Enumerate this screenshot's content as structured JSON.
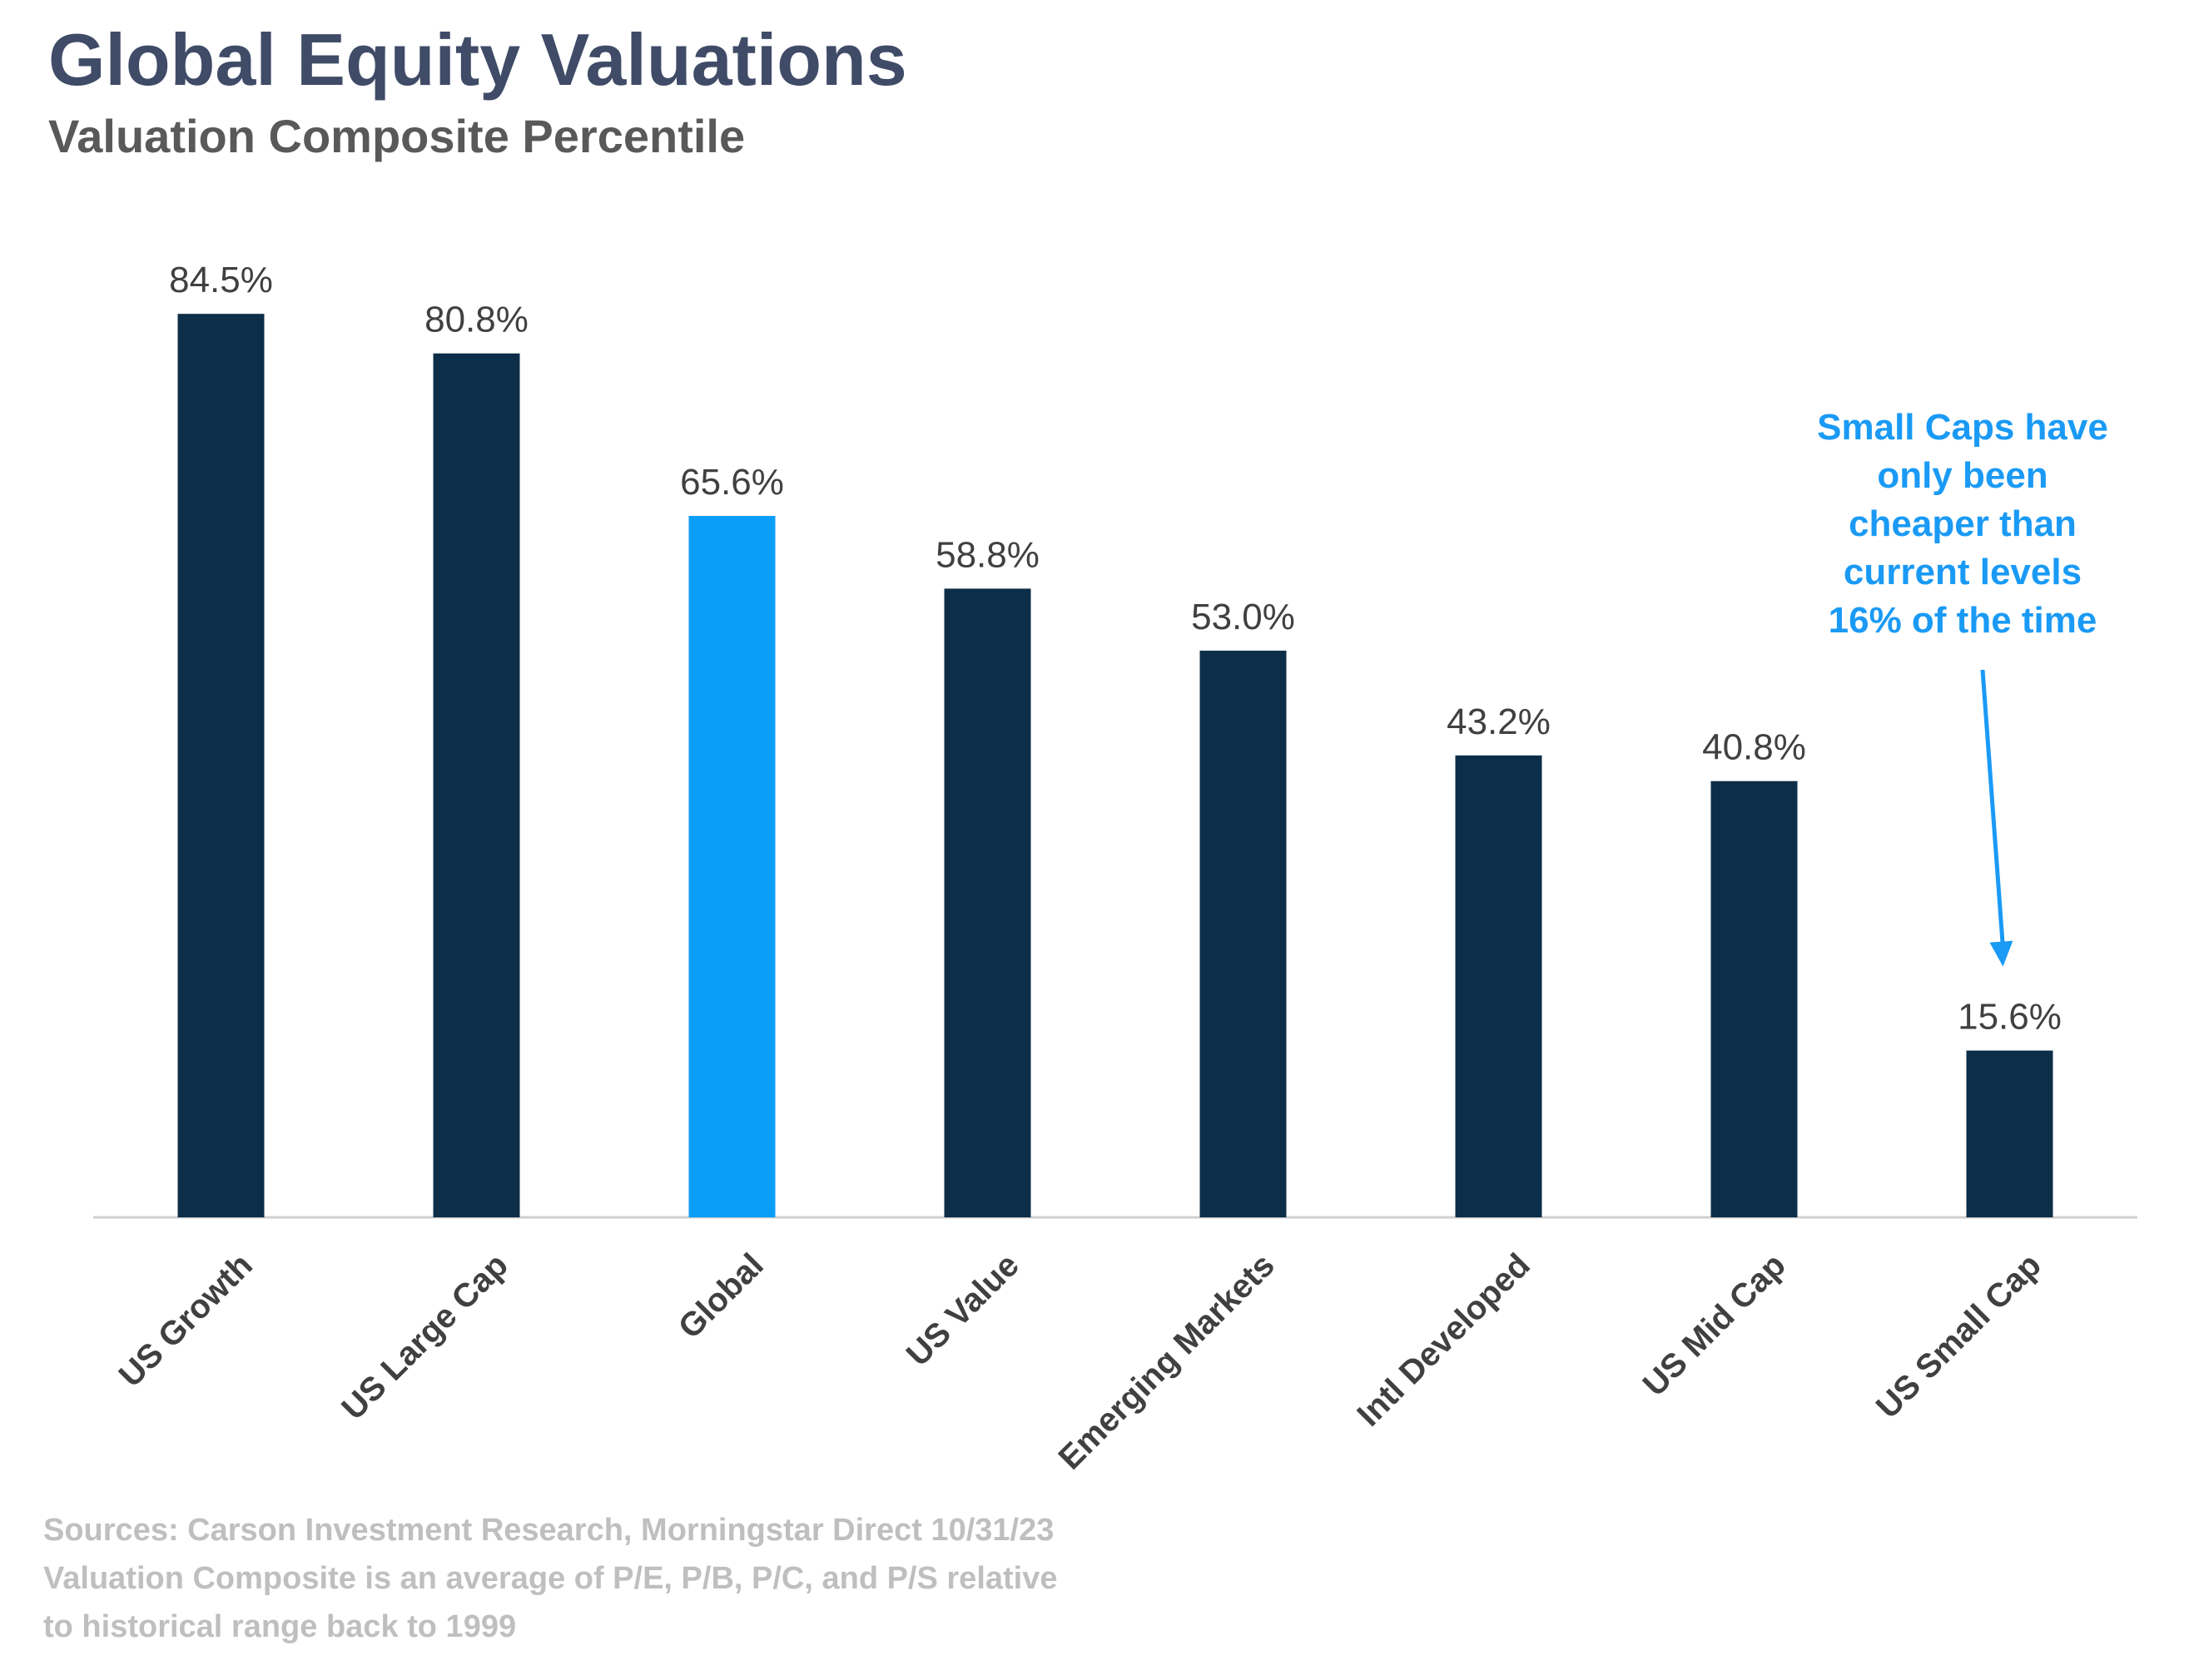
{
  "colors": {
    "bar": "#0d2e48",
    "highlight": "#0a9ef8",
    "axis": "#d0d0d0",
    "annotation": "#1a9af5"
  },
  "chart_data": {
    "type": "bar",
    "title": "Global Equity Valuations",
    "subtitle": "Valuation Composite Percentile",
    "categories": [
      "US Growth",
      "US Large Cap",
      "Global",
      "US Value",
      "Emerging Markets",
      "Intl Developed",
      "US Mid Cap",
      "US Small Cap"
    ],
    "values": [
      84.5,
      80.8,
      65.6,
      58.8,
      53.0,
      43.2,
      40.8,
      15.6
    ],
    "value_labels": [
      "84.5%",
      "80.8%",
      "65.6%",
      "58.8%",
      "53.0%",
      "43.2%",
      "40.8%",
      "15.6%"
    ],
    "highlighted_category": "Global",
    "ylim": [
      0,
      100
    ],
    "grid": false,
    "annotation": {
      "target": "US Small Cap",
      "lines": [
        "Small Caps have",
        "only been",
        "cheaper than",
        "current levels",
        "16% of the time"
      ]
    }
  },
  "sources": [
    "Sources: Carson Investment Research, Morningstar Direct 10/31/23",
    "Valuation Composite is an average of P/E, P/B, P/C, and P/S relative",
    "to historical range back to 1999"
  ]
}
